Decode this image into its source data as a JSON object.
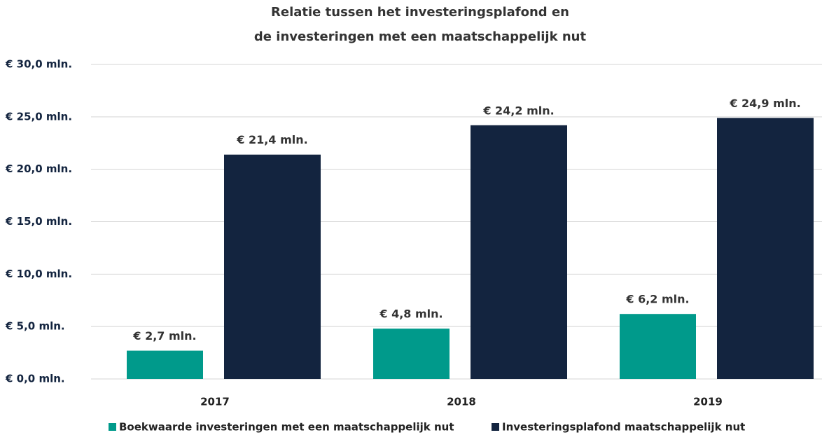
{
  "chart_data": {
    "type": "bar",
    "title": [
      "Relatie tussen het investeringsplafond en",
      "de investeringen met een maatschappelijk nut"
    ],
    "categories": [
      "2017",
      "2018",
      "2019"
    ],
    "series": [
      {
        "name": "Boekwaarde investeringen met een maatschappelijk nut",
        "color": "#009a8b",
        "values": [
          2.7,
          4.8,
          6.2
        ],
        "value_labels": [
          "€ 2,7 mln.",
          "€ 4,8 mln.",
          "€ 6,2 mln."
        ]
      },
      {
        "name": "Investeringsplafond maatschappelijk nut",
        "color": "#13243f",
        "values": [
          21.4,
          24.2,
          24.9
        ],
        "value_labels": [
          "€ 21,4 mln.",
          "€ 24,2 mln.",
          "€ 24,9 mln."
        ]
      }
    ],
    "ylim": [
      0,
      30
    ],
    "yticks": [
      {
        "value": 0,
        "label": "€ 0,0 mln."
      },
      {
        "value": 5,
        "label": "€ 5,0 mln."
      },
      {
        "value": 10,
        "label": "€ 10,0 mln."
      },
      {
        "value": 15,
        "label": "€ 15,0 mln."
      },
      {
        "value": 20,
        "label": "€ 20,0 mln."
      },
      {
        "value": 25,
        "label": "€ 25,0 mln."
      },
      {
        "value": 30,
        "label": "€ 30,0 mln."
      }
    ],
    "grid": true,
    "legend": "bottom"
  }
}
